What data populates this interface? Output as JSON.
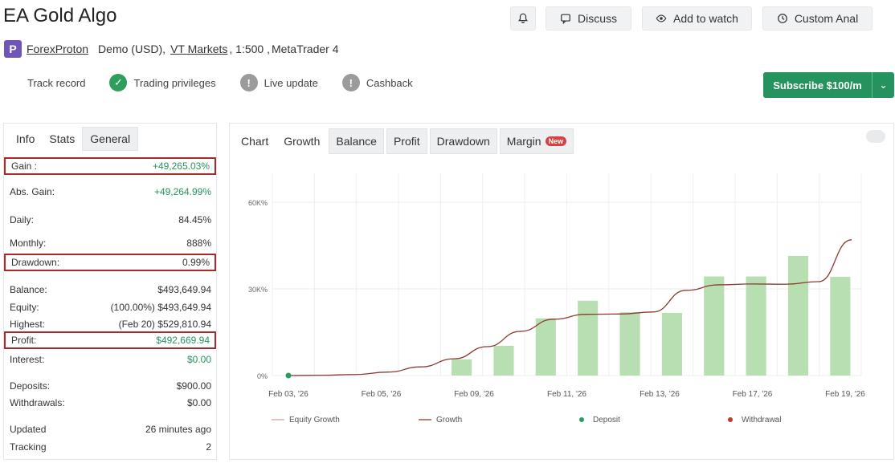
{
  "header": {
    "title": "EA Gold Algo",
    "buttons": {
      "bell_icon": "bell-icon",
      "discuss": "Discuss",
      "watch": "Add to watch",
      "custom": "Custom Anal"
    }
  },
  "provider": {
    "logo_letter": "P",
    "name": "ForexProton",
    "account": "Demo (USD),",
    "broker": "VT Markets",
    "leverage": ", 1:500 , ",
    "platform": "MetaTrader 4"
  },
  "badges": [
    {
      "label": "Track record",
      "state": "none"
    },
    {
      "label": "Trading privileges",
      "state": "green"
    },
    {
      "label": "Live update",
      "state": "grey"
    },
    {
      "label": "Cashback",
      "state": "grey"
    }
  ],
  "subscribe": {
    "label": "Subscribe $100/m",
    "arrow": "⌄"
  },
  "left_tabs": [
    "Info",
    "Stats",
    "General"
  ],
  "stats": [
    {
      "label": "Gain :",
      "value": "+49,265.03%",
      "green": true,
      "hl": true
    },
    {
      "label": "Abs. Gain:",
      "value": "+49,264.99%",
      "green": true,
      "hl": false
    },
    {
      "label": "Daily:",
      "value": "84.45%",
      "green": false,
      "hl": false
    },
    {
      "label": "Monthly:",
      "value": "888%",
      "green": false,
      "hl": false
    },
    {
      "label": "Drawdown:",
      "value": "0.99%",
      "green": false,
      "hl": true
    },
    {
      "label": "Balance:",
      "value": "$493,649.94",
      "green": false,
      "hl": false
    },
    {
      "label": "Equity:",
      "value": "(100.00%) $493,649.94",
      "green": false,
      "hl": false
    },
    {
      "label": "Highest:",
      "value": "(Feb 20) $529,810.94",
      "green": false,
      "hl": false
    },
    {
      "label": "Profit:",
      "value": "$492,669.94",
      "green": true,
      "hl": true
    },
    {
      "label": "Interest:",
      "value": "$0.00",
      "green": true,
      "hl": false
    },
    {
      "label": "Deposits:",
      "value": "$900.00",
      "green": false,
      "hl": false
    },
    {
      "label": "Withdrawals:",
      "value": "$0.00",
      "green": false,
      "hl": false
    },
    {
      "label": "Updated",
      "value": "26 minutes ago",
      "green": false,
      "hl": false
    },
    {
      "label": "Tracking",
      "value": "2",
      "green": false,
      "hl": false
    }
  ],
  "chart_tabs": [
    {
      "label": "Chart",
      "boxed": false,
      "new": false
    },
    {
      "label": "Growth",
      "boxed": false,
      "new": false
    },
    {
      "label": "Balance",
      "boxed": true,
      "new": false
    },
    {
      "label": "Profit",
      "boxed": true,
      "new": false
    },
    {
      "label": "Drawdown",
      "boxed": true,
      "new": false
    },
    {
      "label": "Margin",
      "boxed": true,
      "new": true
    }
  ],
  "new_pill": "New",
  "chart_data": {
    "type": "bar",
    "x_labels": [
      "Feb 03, '26",
      "Feb 05, '26",
      "Feb 09, '26",
      "Feb 11, '26",
      "Feb 13, '26",
      "Feb 17, '26",
      "Feb 19, '26"
    ],
    "y_ticks": [
      "0%",
      "30K%",
      "60K%"
    ],
    "ylim": [
      0,
      70000
    ],
    "bars": [
      0,
      0,
      0,
      0,
      5600,
      10300,
      19800,
      25900,
      21900,
      21700,
      34300,
      34300,
      41400,
      34200
    ],
    "equity_growth": [
      0,
      100,
      350,
      1200,
      3000,
      5800,
      10000,
      15300,
      19500,
      21200,
      21300,
      22000,
      29500,
      31400,
      31700,
      31600,
      32500,
      47000
    ],
    "legend": [
      {
        "label": "Equity Growth",
        "kind": "line",
        "color": "#c9a8a0"
      },
      {
        "label": "Growth",
        "kind": "line",
        "color": "#8b3a2e"
      },
      {
        "label": "Deposit",
        "kind": "dot",
        "color": "#2a9d5c"
      },
      {
        "label": "Withdrawal",
        "kind": "dot",
        "color": "#c0392b"
      }
    ],
    "colors": {
      "bar": "#b8dfb2",
      "line": "#8b3a2e",
      "grid": "#eeeeee",
      "deposit": "#2a9d5c"
    }
  }
}
